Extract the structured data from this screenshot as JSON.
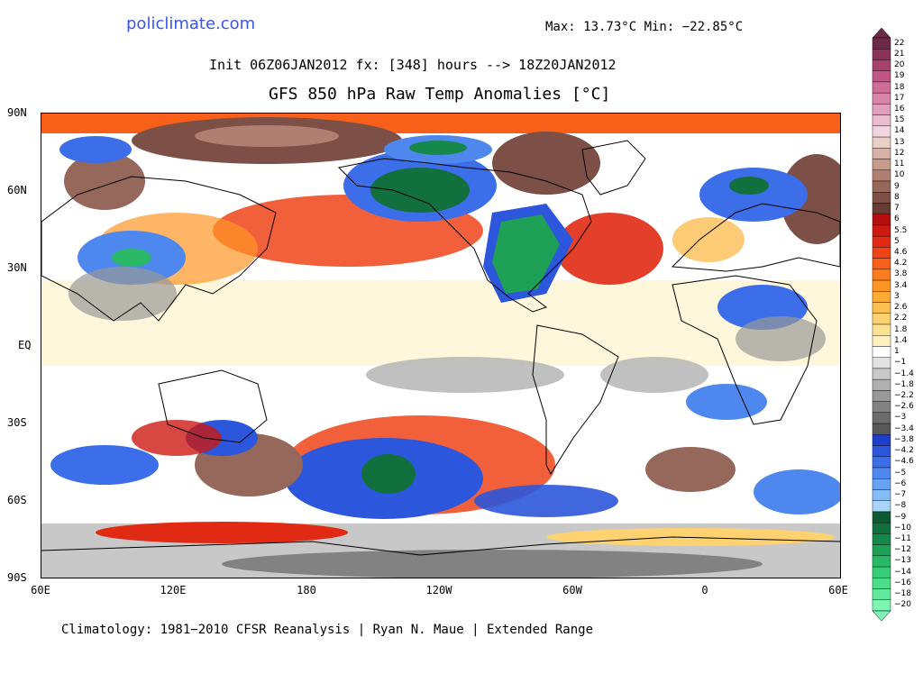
{
  "header": {
    "site": "policlimate.com",
    "maxmin": "Max: 13.73°C Min: −22.85°C",
    "init": "Init 06Z06JAN2012 fx: [348] hours --> 18Z20JAN2012",
    "title": "GFS 850 hPa Raw Temp Anomalies [°C]"
  },
  "footer": "Climatology: 1981−2010 CFSR Reanalysis | Ryan N. Maue | Extended Range",
  "axes": {
    "y_labels": [
      "90N",
      "60N",
      "30N",
      "EQ",
      "30S",
      "60S",
      "90S"
    ],
    "x_labels": [
      "60E",
      "120E",
      "180",
      "120W",
      "60W",
      "0",
      "60E"
    ]
  },
  "colorbar": {
    "labels": [
      "22",
      "21",
      "20",
      "19",
      "18",
      "17",
      "16",
      "15",
      "14",
      "13",
      "12",
      "11",
      "10",
      "9",
      "8",
      "7",
      "6",
      "5.5",
      "5",
      "4.6",
      "4.2",
      "3.8",
      "3.4",
      "3",
      "2.6",
      "2.2",
      "1.8",
      "1.4",
      "1",
      "−1",
      "−1.4",
      "−1.8",
      "−2.2",
      "−2.6",
      "−3",
      "−3.4",
      "−3.8",
      "−4.2",
      "−4.6",
      "−5",
      "−6",
      "−7",
      "−8",
      "−9",
      "−10",
      "−11",
      "−12",
      "−13",
      "−14",
      "−16",
      "−18",
      "−20"
    ],
    "colors": [
      "#6b2a45",
      "#8a3358",
      "#a8416c",
      "#c25585",
      "#cf6c98",
      "#d885aa",
      "#e0a0bd",
      "#e9bcd0",
      "#f1d6e2",
      "#e8cfc7",
      "#d8b2a7",
      "#c79a8c",
      "#b17f72",
      "#96675b",
      "#7c5046",
      "#653c33",
      "#b50f0f",
      "#cc1a12",
      "#e02a14",
      "#ef4417",
      "#f8601a",
      "#fb7b1f",
      "#fd9524",
      "#fdaa35",
      "#fdbe52",
      "#fed171",
      "#fee293",
      "#fff0bd",
      "#ffffff",
      "#e2e2e2",
      "#c8c8c8",
      "#b0b0b0",
      "#989898",
      "#828282",
      "#6c6c6c",
      "#585858",
      "#1e3fc9",
      "#2c56dc",
      "#3b6ee8",
      "#4e88ef",
      "#68a2f3",
      "#86bcf6",
      "#a7d4f8",
      "#0d5a32",
      "#11703d",
      "#168849",
      "#1ea056",
      "#29b866",
      "#37cc77",
      "#4ade89",
      "#62ea9c",
      "#7ef5b2"
    ]
  }
}
